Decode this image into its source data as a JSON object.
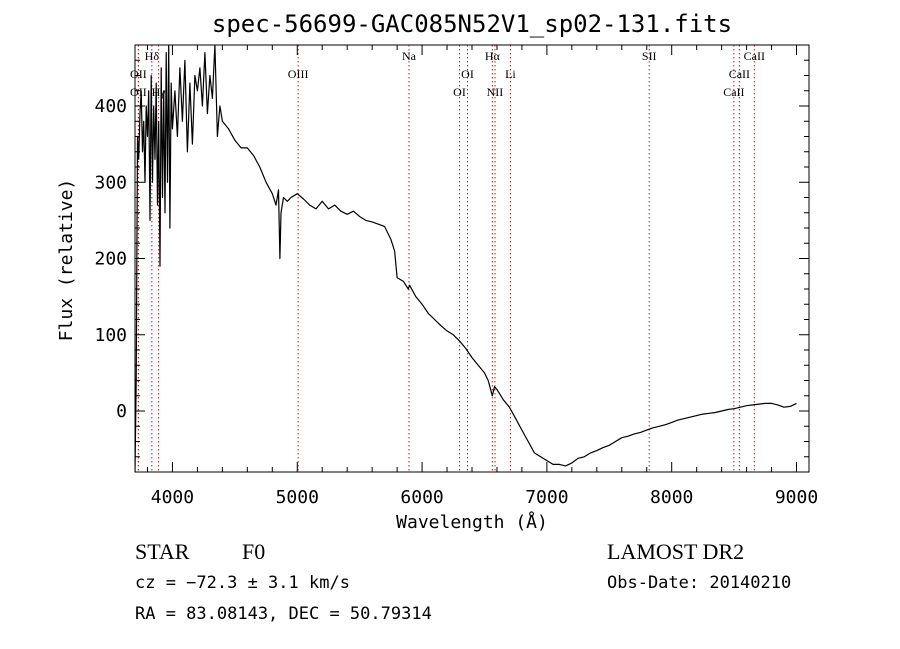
{
  "chart_data": {
    "type": "line",
    "title": "spec-56699-GAC085N52V1_sp02-131.fits",
    "xlabel": "Wavelength (Å)",
    "ylabel": "Flux (relative)",
    "xlim": [
      3700,
      9100
    ],
    "ylim": [
      -80,
      480
    ],
    "x_ticks": [
      4000,
      5000,
      6000,
      7000,
      8000,
      9000
    ],
    "y_ticks": [
      0,
      100,
      200,
      300,
      400
    ],
    "grid": false,
    "line_color": "#000000",
    "marker_line_color": "#b22222",
    "spectrum": {
      "x": [
        3700,
        3710,
        3720,
        3730,
        3740,
        3750,
        3760,
        3770,
        3780,
        3790,
        3800,
        3810,
        3820,
        3830,
        3840,
        3850,
        3860,
        3870,
        3880,
        3890,
        3900,
        3910,
        3920,
        3930,
        3940,
        3950,
        3960,
        3970,
        3980,
        3990,
        4000,
        4020,
        4040,
        4060,
        4080,
        4100,
        4120,
        4140,
        4160,
        4180,
        4200,
        4220,
        4240,
        4260,
        4280,
        4300,
        4320,
        4340,
        4360,
        4380,
        4400,
        4450,
        4500,
        4550,
        4600,
        4650,
        4700,
        4750,
        4800,
        4830,
        4850,
        4861,
        4870,
        4890,
        4920,
        4950,
        5000,
        5050,
        5100,
        5150,
        5200,
        5250,
        5300,
        5350,
        5400,
        5450,
        5500,
        5550,
        5600,
        5650,
        5700,
        5750,
        5780,
        5800,
        5850,
        5890,
        5900,
        5950,
        6000,
        6050,
        6100,
        6150,
        6200,
        6250,
        6300,
        6350,
        6400,
        6450,
        6500,
        6530,
        6563,
        6580,
        6600,
        6650,
        6700,
        6750,
        6800,
        6850,
        6900,
        6950,
        7000,
        7050,
        7100,
        7150,
        7200,
        7250,
        7300,
        7350,
        7400,
        7450,
        7500,
        7550,
        7600,
        7650,
        7700,
        7750,
        7800,
        7850,
        7900,
        7950,
        8000,
        8050,
        8100,
        8150,
        8200,
        8250,
        8300,
        8350,
        8400,
        8450,
        8500,
        8550,
        8600,
        8650,
        8700,
        8750,
        8800,
        8850,
        8900,
        8950,
        9000
      ],
      "y": [
        -80,
        40,
        360,
        330,
        390,
        420,
        340,
        380,
        300,
        400,
        360,
        420,
        250,
        440,
        300,
        400,
        330,
        430,
        270,
        380,
        190,
        450,
        280,
        420,
        260,
        470,
        300,
        480,
        240,
        430,
        370,
        420,
        360,
        450,
        380,
        460,
        340,
        430,
        350,
        440,
        420,
        450,
        400,
        470,
        390,
        440,
        410,
        480,
        360,
        400,
        380,
        370,
        355,
        345,
        345,
        335,
        320,
        300,
        285,
        270,
        290,
        200,
        260,
        280,
        275,
        280,
        285,
        278,
        270,
        265,
        275,
        265,
        270,
        262,
        258,
        262,
        255,
        250,
        248,
        245,
        242,
        225,
        210,
        175,
        170,
        160,
        165,
        150,
        140,
        128,
        120,
        112,
        105,
        100,
        92,
        82,
        70,
        60,
        50,
        40,
        20,
        32,
        28,
        15,
        5,
        -10,
        -25,
        -40,
        -55,
        -60,
        -65,
        -70,
        -70,
        -72,
        -68,
        -62,
        -60,
        -55,
        -52,
        -48,
        -45,
        -40,
        -35,
        -33,
        -30,
        -28,
        -25,
        -22,
        -20,
        -18,
        -15,
        -12,
        -10,
        -8,
        -6,
        -4,
        -3,
        -2,
        0,
        2,
        3,
        5,
        7,
        8,
        9,
        10,
        10,
        8,
        5,
        6,
        10
      ]
    },
    "line_markers": [
      {
        "label": "OII",
        "x": 3727,
        "row": 2
      },
      {
        "label": "OII",
        "x": 3727,
        "row": 3
      },
      {
        "label": "Hδ",
        "x": 3835,
        "row": 1
      },
      {
        "label": "Hγ",
        "x": 3889,
        "row": 3
      },
      {
        "label": "OIII",
        "x": 5007,
        "row": 2
      },
      {
        "label": "Na",
        "x": 5895,
        "row": 1
      },
      {
        "label": "OI",
        "x": 6300,
        "row": 3
      },
      {
        "label": "OI",
        "x": 6364,
        "row": 2
      },
      {
        "label": "Hα",
        "x": 6563,
        "row": 1
      },
      {
        "label": "NII",
        "x": 6584,
        "row": 3
      },
      {
        "label": "Li",
        "x": 6708,
        "row": 2
      },
      {
        "label": "SII",
        "x": 7820,
        "row": 1
      },
      {
        "label": "CaII",
        "x": 8498,
        "row": 3
      },
      {
        "label": "CaII",
        "x": 8542,
        "row": 2
      },
      {
        "label": "CaII",
        "x": 8662,
        "row": 1
      }
    ]
  },
  "info": {
    "object_class": "STAR",
    "subclass": "F0",
    "survey": "LAMOST DR2",
    "redshift_text": "cz = −72.3 ± 3.1 km/s",
    "obs_date_text": "Obs-Date: 20140210",
    "coords_text": "RA =  83.08143, DEC =  50.79314"
  }
}
